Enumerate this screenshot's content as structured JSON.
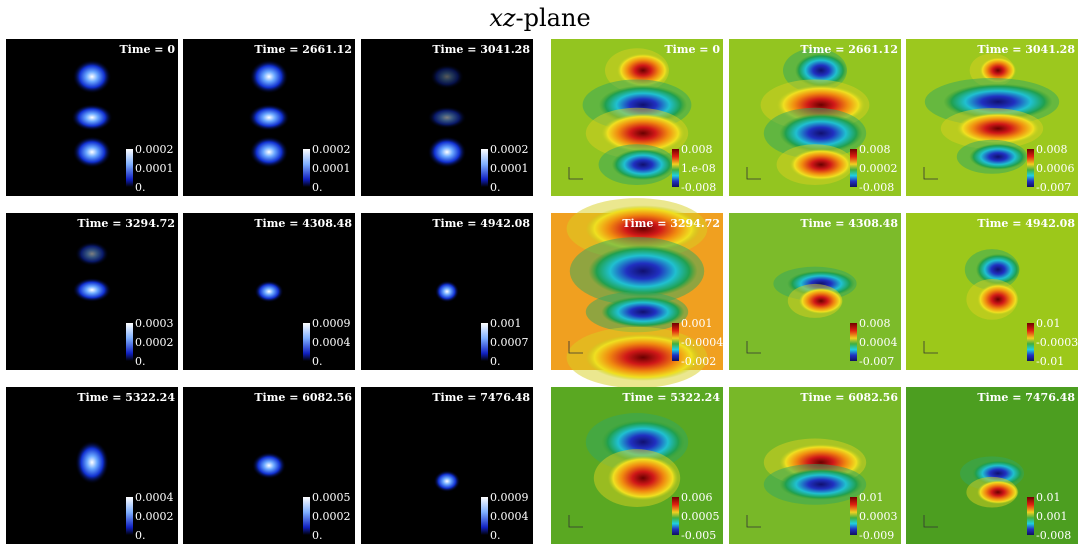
{
  "title_math": "xz",
  "title_rest": "-plane",
  "rows": [
    [
      {
        "time": "Time = 0",
        "colorbar": [
          "0.0002",
          "0.0001",
          "0."
        ]
      },
      {
        "time": "Time = 2661.12",
        "colorbar": [
          "0.0002",
          "0.0001",
          "0."
        ]
      },
      {
        "time": "Time = 3041.28",
        "colorbar": [
          "0.0002",
          "0.0001",
          "0."
        ]
      },
      {
        "time": "Time = 0",
        "colorbar": [
          "0.008",
          "1.e-08",
          "-0.008"
        ]
      },
      {
        "time": "Time = 2661.12",
        "colorbar": [
          "0.008",
          "0.0002",
          "-0.008"
        ]
      },
      {
        "time": "Time = 3041.28",
        "colorbar": [
          "0.008",
          "0.0006",
          "-0.007"
        ]
      }
    ],
    [
      {
        "time": "Time = 3294.72",
        "colorbar": [
          "0.0003",
          "0.0002",
          "0."
        ]
      },
      {
        "time": "Time = 4308.48",
        "colorbar": [
          "0.0009",
          "0.0004",
          "0."
        ]
      },
      {
        "time": "Time = 4942.08",
        "colorbar": [
          "0.001",
          "0.0007",
          "0."
        ]
      },
      {
        "time": "Time = 3294.72",
        "colorbar": [
          "0.001",
          "-0.0004",
          "-0.002"
        ]
      },
      {
        "time": "Time = 4308.48",
        "colorbar": [
          "0.008",
          "0.0004",
          "-0.007"
        ]
      },
      {
        "time": "Time = 4942.08",
        "colorbar": [
          "0.01",
          "-0.0003",
          "-0.01"
        ]
      }
    ],
    [
      {
        "time": "Time = 5322.24",
        "colorbar": [
          "0.0004",
          "0.0002",
          "0."
        ]
      },
      {
        "time": "Time = 6082.56",
        "colorbar": [
          "0.0005",
          "0.0002",
          "0."
        ]
      },
      {
        "time": "Time = 7476.48",
        "colorbar": [
          "0.0009",
          "0.0004",
          "0."
        ]
      },
      {
        "time": "Time = 5322.24",
        "colorbar": [
          "0.006",
          "0.0005",
          "-0.005"
        ]
      },
      {
        "time": "Time = 6082.56",
        "colorbar": [
          "0.01",
          "0.0003",
          "-0.009"
        ]
      },
      {
        "time": "Time = 7476.48",
        "colorbar": [
          "0.01",
          "0.001",
          "-0.008"
        ]
      }
    ]
  ]
}
